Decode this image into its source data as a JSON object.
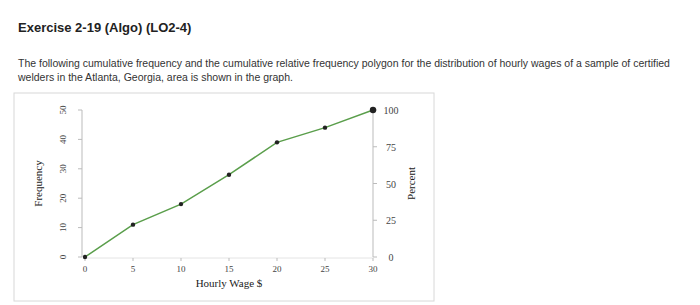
{
  "header": {
    "title": "Exercise 2-19 (Algo) (LO2-4)",
    "text": "The following cumulative frequency and the cumulative relative frequency polygon for the distribution of hourly wages of a sample of certified welders in the Atlanta, Georgia, area is shown in the graph."
  },
  "chart_data": {
    "type": "line",
    "x_label": "Hourly Wage $",
    "y_label": "Frequency",
    "y2_label": "Percent",
    "x": [
      0,
      5,
      10,
      15,
      20,
      25,
      30
    ],
    "series": [
      {
        "name": "Cumulative frequency",
        "color": "#5a9e4b",
        "marker": "circle",
        "values": [
          0,
          11,
          18,
          28,
          39,
          44,
          50
        ]
      }
    ],
    "xlim": [
      0,
      30
    ],
    "xticks": [
      0,
      5,
      10,
      15,
      20,
      25,
      30
    ],
    "ylim": [
      0,
      50
    ],
    "yticks": [
      0,
      10,
      20,
      30,
      40,
      50
    ],
    "y2lim": [
      0,
      100
    ],
    "y2ticks": [
      0,
      25,
      50,
      75,
      100
    ],
    "grid": false
  }
}
